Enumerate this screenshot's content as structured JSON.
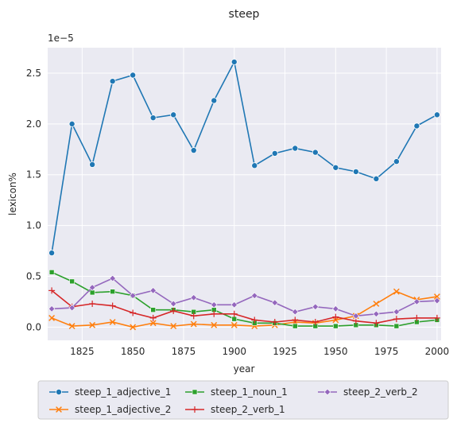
{
  "chart_data": {
    "type": "line",
    "title": "steep",
    "xlabel": "year",
    "ylabel": "lexicon%",
    "offset_label": "1e−5",
    "scale": 1e-05,
    "xlim": [
      1808,
      2002
    ],
    "ylim": [
      -0.13,
      2.75
    ],
    "xticks": [
      1825,
      1850,
      1875,
      1900,
      1925,
      1950,
      1975,
      2000
    ],
    "yticks": [
      0.0,
      0.5,
      1.0,
      1.5,
      2.0,
      2.5
    ],
    "ytick_labels": [
      "0.0",
      "0.5",
      "1.0",
      "1.5",
      "2.0",
      "2.5"
    ],
    "grid": true,
    "legend_position": "below",
    "x": [
      1810,
      1820,
      1830,
      1840,
      1850,
      1860,
      1870,
      1880,
      1890,
      1900,
      1910,
      1920,
      1930,
      1940,
      1950,
      1960,
      1970,
      1980,
      1990,
      2000
    ],
    "series": [
      {
        "name": "steep_1_adjective_1",
        "color": "#1f77b4",
        "marker": "circle",
        "values": [
          0.73,
          2.0,
          1.6,
          2.42,
          2.48,
          2.06,
          2.09,
          1.74,
          2.23,
          2.61,
          1.59,
          1.71,
          1.76,
          1.72,
          1.57,
          1.53,
          1.46,
          1.63,
          1.98,
          2.09
        ]
      },
      {
        "name": "steep_1_adjective_2",
        "color": "#ff7f0e",
        "marker": "x",
        "values": [
          0.09,
          0.01,
          0.02,
          0.05,
          0.0,
          0.04,
          0.01,
          0.03,
          0.02,
          0.02,
          0.01,
          0.02,
          0.05,
          0.04,
          0.07,
          0.11,
          0.23,
          0.35,
          0.27,
          0.3
        ]
      },
      {
        "name": "steep_1_noun_1",
        "color": "#2ca02c",
        "marker": "square",
        "values": [
          0.54,
          0.45,
          0.34,
          0.35,
          0.31,
          0.17,
          0.17,
          0.15,
          0.17,
          0.08,
          0.04,
          0.04,
          0.01,
          0.01,
          0.01,
          0.02,
          0.02,
          0.01,
          0.05,
          0.07
        ]
      },
      {
        "name": "steep_2_verb_1",
        "color": "#d62728",
        "marker": "plus",
        "values": [
          0.36,
          0.2,
          0.23,
          0.21,
          0.14,
          0.09,
          0.16,
          0.11,
          0.13,
          0.13,
          0.07,
          0.05,
          0.07,
          0.05,
          0.1,
          0.06,
          0.04,
          0.08,
          0.09,
          0.09
        ]
      },
      {
        "name": "steep_2_verb_2",
        "color": "#9467bd",
        "marker": "diamond",
        "values": [
          0.18,
          0.19,
          0.39,
          0.48,
          0.31,
          0.36,
          0.23,
          0.29,
          0.22,
          0.22,
          0.31,
          0.24,
          0.15,
          0.2,
          0.18,
          0.11,
          0.13,
          0.15,
          0.25,
          0.26
        ]
      }
    ]
  }
}
